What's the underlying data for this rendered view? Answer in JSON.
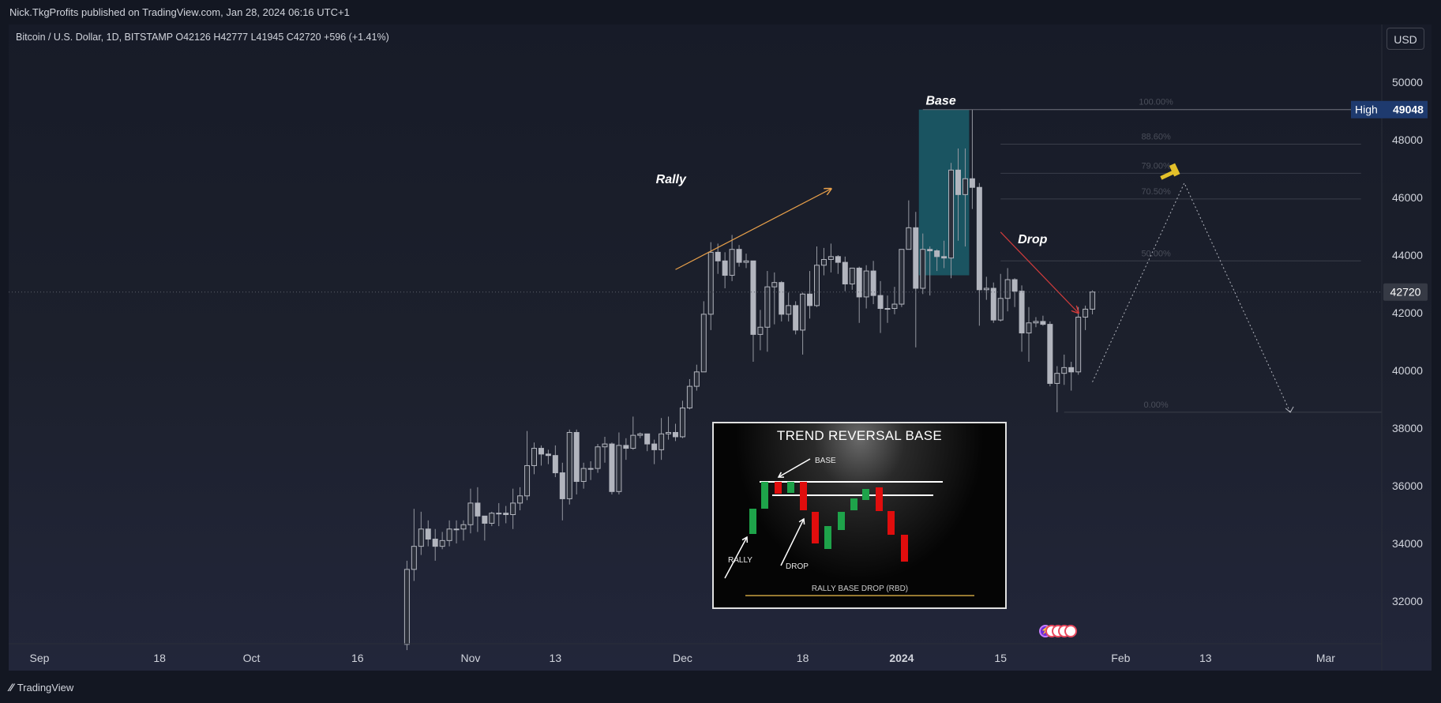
{
  "header": {
    "published": "Nick.TkgProfits published on TradingView.com, Jan 28, 2024 06:16 UTC+1",
    "symbol_line": "Bitcoin / U.S. Dollar, 1D, BITSTAMP  O42126  H42777  L41945  C42720  +596 (+1.41%)",
    "currency": "USD"
  },
  "footer": {
    "brand": "TradingView",
    "logo_icon": "tradingview-logo-icon"
  },
  "chart_data": {
    "type": "candlestick",
    "symbol": "Bitcoin / U.S. Dollar",
    "interval": "1D",
    "exchange": "BITSTAMP",
    "ohlc_last": {
      "open": 42126,
      "high": 42777,
      "low": 41945,
      "close": 42720,
      "change": 596,
      "change_pct": "+1.41%"
    },
    "ylim": [
      30500,
      51000
    ],
    "y_ticks": [
      "50000",
      "48000",
      "46000",
      "44000",
      "42000",
      "40000",
      "38000",
      "36000",
      "34000",
      "32000"
    ],
    "x_ticks": [
      {
        "label": "Sep",
        "date": "2023-09-01"
      },
      {
        "label": "18",
        "date": "2023-09-18"
      },
      {
        "label": "Oct",
        "date": "2023-10-01"
      },
      {
        "label": "16",
        "date": "2023-10-16"
      },
      {
        "label": "Nov",
        "date": "2023-11-01"
      },
      {
        "label": "13",
        "date": "2023-11-13"
      },
      {
        "label": "Dec",
        "date": "2023-12-01"
      },
      {
        "label": "18",
        "date": "2023-12-18"
      },
      {
        "label": "2024",
        "date": "2024-01-01",
        "bold": true
      },
      {
        "label": "15",
        "date": "2024-01-15"
      },
      {
        "label": "Feb",
        "date": "2024-02-01"
      },
      {
        "label": "13",
        "date": "2024-02-13"
      },
      {
        "label": "Mar",
        "date": "2024-03-01"
      }
    ],
    "price_labels": {
      "high_label": "High",
      "high_value": "49048",
      "current_value": "42720"
    },
    "candles": [
      {
        "d": "2023-10-23",
        "o": 30500,
        "h": 33400,
        "l": 30300,
        "c": 33100
      },
      {
        "d": "2023-10-24",
        "o": 33100,
        "h": 35200,
        "l": 32700,
        "c": 33900
      },
      {
        "d": "2023-10-25",
        "o": 33900,
        "h": 35100,
        "l": 33600,
        "c": 34500
      },
      {
        "d": "2023-10-26",
        "o": 34500,
        "h": 34800,
        "l": 33900,
        "c": 34150
      },
      {
        "d": "2023-10-27",
        "o": 34150,
        "h": 34500,
        "l": 33400,
        "c": 33900
      },
      {
        "d": "2023-10-28",
        "o": 33900,
        "h": 34400,
        "l": 33800,
        "c": 34100
      },
      {
        "d": "2023-10-29",
        "o": 34100,
        "h": 34800,
        "l": 33900,
        "c": 34500
      },
      {
        "d": "2023-10-30",
        "o": 34500,
        "h": 34800,
        "l": 34000,
        "c": 34500
      },
      {
        "d": "2023-10-31",
        "o": 34500,
        "h": 34800,
        "l": 34100,
        "c": 34650
      },
      {
        "d": "2023-11-01",
        "o": 34650,
        "h": 35900,
        "l": 34350,
        "c": 35400
      },
      {
        "d": "2023-11-02",
        "o": 35400,
        "h": 35950,
        "l": 34400,
        "c": 34950
      },
      {
        "d": "2023-11-03",
        "o": 34950,
        "h": 34950,
        "l": 34100,
        "c": 34700
      },
      {
        "d": "2023-11-04",
        "o": 34700,
        "h": 35100,
        "l": 34600,
        "c": 35050
      },
      {
        "d": "2023-11-05",
        "o": 35050,
        "h": 35400,
        "l": 34600,
        "c": 35050
      },
      {
        "d": "2023-11-06",
        "o": 35050,
        "h": 35300,
        "l": 34700,
        "c": 35000
      },
      {
        "d": "2023-11-07",
        "o": 35000,
        "h": 35900,
        "l": 34500,
        "c": 35400
      },
      {
        "d": "2023-11-08",
        "o": 35400,
        "h": 35950,
        "l": 35150,
        "c": 35650
      },
      {
        "d": "2023-11-09",
        "o": 35650,
        "h": 37900,
        "l": 35500,
        "c": 36700
      },
      {
        "d": "2023-11-10",
        "o": 36700,
        "h": 37500,
        "l": 36400,
        "c": 37300
      },
      {
        "d": "2023-11-11",
        "o": 37300,
        "h": 37400,
        "l": 36700,
        "c": 37100
      },
      {
        "d": "2023-11-12",
        "o": 37100,
        "h": 37250,
        "l": 36750,
        "c": 37050
      },
      {
        "d": "2023-11-13",
        "o": 37050,
        "h": 37400,
        "l": 36300,
        "c": 36450
      },
      {
        "d": "2023-11-14",
        "o": 36450,
        "h": 36800,
        "l": 34800,
        "c": 35550
      },
      {
        "d": "2023-11-15",
        "o": 35550,
        "h": 37950,
        "l": 35350,
        "c": 37850
      },
      {
        "d": "2023-11-16",
        "o": 37850,
        "h": 37950,
        "l": 35700,
        "c": 36150
      },
      {
        "d": "2023-11-17",
        "o": 36150,
        "h": 36800,
        "l": 35900,
        "c": 36600
      },
      {
        "d": "2023-11-18",
        "o": 36600,
        "h": 36850,
        "l": 36200,
        "c": 36600
      },
      {
        "d": "2023-11-19",
        "o": 36600,
        "h": 37450,
        "l": 36450,
        "c": 37350
      },
      {
        "d": "2023-11-20",
        "o": 37350,
        "h": 37700,
        "l": 36800,
        "c": 37450
      },
      {
        "d": "2023-11-21",
        "o": 37450,
        "h": 37500,
        "l": 35700,
        "c": 35800
      },
      {
        "d": "2023-11-22",
        "o": 35800,
        "h": 37850,
        "l": 35700,
        "c": 37400
      },
      {
        "d": "2023-11-23",
        "o": 37400,
        "h": 37650,
        "l": 36900,
        "c": 37300
      },
      {
        "d": "2023-11-24",
        "o": 37300,
        "h": 38400,
        "l": 37250,
        "c": 37750
      },
      {
        "d": "2023-11-25",
        "o": 37750,
        "h": 37850,
        "l": 37650,
        "c": 37800
      },
      {
        "d": "2023-11-26",
        "o": 37800,
        "h": 37800,
        "l": 37200,
        "c": 37450
      },
      {
        "d": "2023-11-27",
        "o": 37450,
        "h": 37600,
        "l": 36750,
        "c": 37250
      },
      {
        "d": "2023-11-28",
        "o": 37250,
        "h": 38350,
        "l": 36900,
        "c": 37800
      },
      {
        "d": "2023-11-29",
        "o": 37800,
        "h": 38400,
        "l": 37600,
        "c": 37850
      },
      {
        "d": "2023-11-30",
        "o": 37850,
        "h": 38150,
        "l": 37550,
        "c": 37700
      },
      {
        "d": "2023-12-01",
        "o": 37700,
        "h": 38950,
        "l": 37650,
        "c": 38700
      },
      {
        "d": "2023-12-02",
        "o": 38700,
        "h": 39700,
        "l": 38650,
        "c": 39450
      },
      {
        "d": "2023-12-03",
        "o": 39450,
        "h": 40200,
        "l": 39300,
        "c": 39950
      },
      {
        "d": "2023-12-04",
        "o": 39950,
        "h": 42400,
        "l": 39950,
        "c": 41950
      },
      {
        "d": "2023-12-05",
        "o": 41950,
        "h": 44450,
        "l": 41400,
        "c": 44100
      },
      {
        "d": "2023-12-06",
        "o": 44100,
        "h": 44400,
        "l": 43350,
        "c": 43800
      },
      {
        "d": "2023-12-07",
        "o": 43800,
        "h": 44100,
        "l": 42850,
        "c": 43300
      },
      {
        "d": "2023-12-08",
        "o": 43300,
        "h": 44700,
        "l": 43100,
        "c": 44200
      },
      {
        "d": "2023-12-09",
        "o": 44200,
        "h": 44350,
        "l": 43600,
        "c": 43750
      },
      {
        "d": "2023-12-10",
        "o": 43750,
        "h": 44050,
        "l": 43550,
        "c": 43800
      },
      {
        "d": "2023-12-11",
        "o": 43800,
        "h": 43800,
        "l": 40300,
        "c": 41250
      },
      {
        "d": "2023-12-12",
        "o": 41250,
        "h": 42100,
        "l": 40700,
        "c": 41500
      },
      {
        "d": "2023-12-13",
        "o": 41500,
        "h": 43450,
        "l": 40650,
        "c": 42900
      },
      {
        "d": "2023-12-14",
        "o": 42900,
        "h": 43400,
        "l": 41600,
        "c": 43050
      },
      {
        "d": "2023-12-15",
        "o": 43050,
        "h": 43100,
        "l": 41700,
        "c": 41950
      },
      {
        "d": "2023-12-16",
        "o": 41950,
        "h": 42700,
        "l": 41700,
        "c": 42250
      },
      {
        "d": "2023-12-17",
        "o": 42250,
        "h": 42400,
        "l": 41250,
        "c": 41400
      },
      {
        "d": "2023-12-18",
        "o": 41400,
        "h": 42700,
        "l": 40550,
        "c": 42650
      },
      {
        "d": "2023-12-19",
        "o": 42650,
        "h": 43450,
        "l": 41800,
        "c": 42250
      },
      {
        "d": "2023-12-20",
        "o": 42250,
        "h": 44300,
        "l": 42200,
        "c": 43650
      },
      {
        "d": "2023-12-21",
        "o": 43650,
        "h": 44250,
        "l": 43300,
        "c": 43850
      },
      {
        "d": "2023-12-22",
        "o": 43850,
        "h": 44400,
        "l": 43400,
        "c": 43950
      },
      {
        "d": "2023-12-23",
        "o": 43950,
        "h": 44000,
        "l": 43350,
        "c": 43750
      },
      {
        "d": "2023-12-24",
        "o": 43750,
        "h": 43950,
        "l": 42750,
        "c": 43000
      },
      {
        "d": "2023-12-25",
        "o": 43000,
        "h": 43550,
        "l": 42800,
        "c": 43550
      },
      {
        "d": "2023-12-26",
        "o": 43550,
        "h": 43600,
        "l": 41650,
        "c": 42550
      },
      {
        "d": "2023-12-27",
        "o": 42550,
        "h": 43650,
        "l": 42150,
        "c": 43450
      },
      {
        "d": "2023-12-28",
        "o": 43450,
        "h": 43800,
        "l": 42300,
        "c": 42600
      },
      {
        "d": "2023-12-29",
        "o": 42600,
        "h": 43100,
        "l": 41300,
        "c": 42150
      },
      {
        "d": "2023-12-30",
        "o": 42150,
        "h": 42600,
        "l": 41650,
        "c": 42150
      },
      {
        "d": "2023-12-31",
        "o": 42150,
        "h": 42900,
        "l": 41950,
        "c": 42300
      },
      {
        "d": "2024-01-01",
        "o": 42300,
        "h": 44200,
        "l": 42200,
        "c": 44200
      },
      {
        "d": "2024-01-02",
        "o": 44200,
        "h": 45900,
        "l": 44200,
        "c": 44950
      },
      {
        "d": "2024-01-03",
        "o": 44950,
        "h": 45500,
        "l": 40800,
        "c": 42850
      },
      {
        "d": "2024-01-04",
        "o": 42850,
        "h": 44750,
        "l": 42650,
        "c": 44200
      },
      {
        "d": "2024-01-05",
        "o": 44200,
        "h": 44300,
        "l": 42600,
        "c": 44150
      },
      {
        "d": "2024-01-06",
        "o": 44150,
        "h": 44200,
        "l": 43450,
        "c": 43950
      },
      {
        "d": "2024-01-07",
        "o": 43950,
        "h": 44500,
        "l": 43550,
        "c": 43900
      },
      {
        "d": "2024-01-08",
        "o": 43900,
        "h": 47200,
        "l": 43200,
        "c": 46950
      },
      {
        "d": "2024-01-09",
        "o": 46950,
        "h": 47700,
        "l": 44500,
        "c": 46100
      },
      {
        "d": "2024-01-10",
        "o": 46100,
        "h": 47700,
        "l": 44300,
        "c": 46650
      },
      {
        "d": "2024-01-11",
        "o": 46650,
        "h": 49048,
        "l": 45600,
        "c": 46350
      },
      {
        "d": "2024-01-12",
        "o": 46350,
        "h": 46500,
        "l": 41550,
        "c": 42800
      },
      {
        "d": "2024-01-13",
        "o": 42800,
        "h": 43250,
        "l": 42450,
        "c": 42850
      },
      {
        "d": "2024-01-14",
        "o": 42850,
        "h": 43050,
        "l": 41650,
        "c": 41750
      },
      {
        "d": "2024-01-15",
        "o": 41750,
        "h": 43350,
        "l": 41700,
        "c": 42500
      },
      {
        "d": "2024-01-16",
        "o": 42500,
        "h": 43550,
        "l": 42050,
        "c": 43150
      },
      {
        "d": "2024-01-17",
        "o": 43150,
        "h": 43200,
        "l": 42200,
        "c": 42750
      },
      {
        "d": "2024-01-18",
        "o": 42750,
        "h": 42950,
        "l": 40650,
        "c": 41300
      },
      {
        "d": "2024-01-19",
        "o": 41300,
        "h": 42200,
        "l": 40300,
        "c": 41650
      },
      {
        "d": "2024-01-20",
        "o": 41650,
        "h": 41850,
        "l": 41500,
        "c": 41700
      },
      {
        "d": "2024-01-21",
        "o": 41700,
        "h": 41900,
        "l": 41550,
        "c": 41600
      },
      {
        "d": "2024-01-22",
        "o": 41600,
        "h": 41700,
        "l": 39450,
        "c": 39550
      },
      {
        "d": "2024-01-23",
        "o": 39550,
        "h": 40150,
        "l": 38550,
        "c": 39900
      },
      {
        "d": "2024-01-24",
        "o": 39900,
        "h": 40550,
        "l": 39500,
        "c": 40100
      },
      {
        "d": "2024-01-25",
        "o": 40100,
        "h": 40300,
        "l": 39300,
        "c": 39950
      },
      {
        "d": "2024-01-26",
        "o": 39950,
        "h": 42200,
        "l": 39850,
        "c": 41850
      },
      {
        "d": "2024-01-27",
        "o": 41850,
        "h": 42250,
        "l": 41400,
        "c": 42126
      },
      {
        "d": "2024-01-28",
        "o": 42126,
        "h": 42777,
        "l": 41945,
        "c": 42720
      }
    ],
    "base_zone": {
      "label": "Base",
      "x_start": "2024-01-04",
      "x_end": "2024-01-10",
      "y_low": 43300,
      "y_high": 49048,
      "color": "#1b5e6b"
    },
    "annotations": [
      {
        "label": "Rally",
        "arrow_from": {
          "d": "2023-11-30",
          "p": 43500
        },
        "arrow_to": {
          "d": "2023-12-22",
          "p": 46300
        },
        "color": "#e8a04a"
      },
      {
        "label": "Drop",
        "arrow_from": {
          "d": "2024-01-15",
          "p": 44800
        },
        "arrow_to": {
          "d": "2024-01-26",
          "p": 42000
        },
        "color": "#d23c3c"
      }
    ],
    "fib_levels": [
      {
        "label": "100.00%",
        "price": 49048
      },
      {
        "label": "88.60%",
        "price": 47850
      },
      {
        "label": "79.00%",
        "price": 46840
      },
      {
        "label": "70.50%",
        "price": 45950
      },
      {
        "label": "50.00%",
        "price": 43800
      },
      {
        "label": "0.00%",
        "price": 38550
      }
    ],
    "projection": [
      {
        "d": "2024-01-28",
        "p": 39600
      },
      {
        "d": "2024-02-10",
        "p": 46500
      },
      {
        "d": "2024-02-25",
        "p": 38550
      }
    ],
    "hammer_icon": "gavel-icon",
    "colors": {
      "up": "#9598a1",
      "down": "#9598a1",
      "text": "#d1d4dc",
      "high_badge": "#1e3a6e",
      "current_badge": "#363a45"
    }
  },
  "inset": {
    "title": "TREND REVERSAL BASE",
    "labels": {
      "base": "BASE",
      "rally": "RALLY",
      "drop": "DROP",
      "caption": "RALLY BASE DROP (RBD)"
    },
    "colors": {
      "up": "#1ea34a",
      "down": "#e00d0d"
    }
  },
  "events_icons": [
    "lightning-icon",
    "us-flag-icon",
    "us-flag-icon",
    "us-flag-icon",
    "us-flag-icon"
  ]
}
